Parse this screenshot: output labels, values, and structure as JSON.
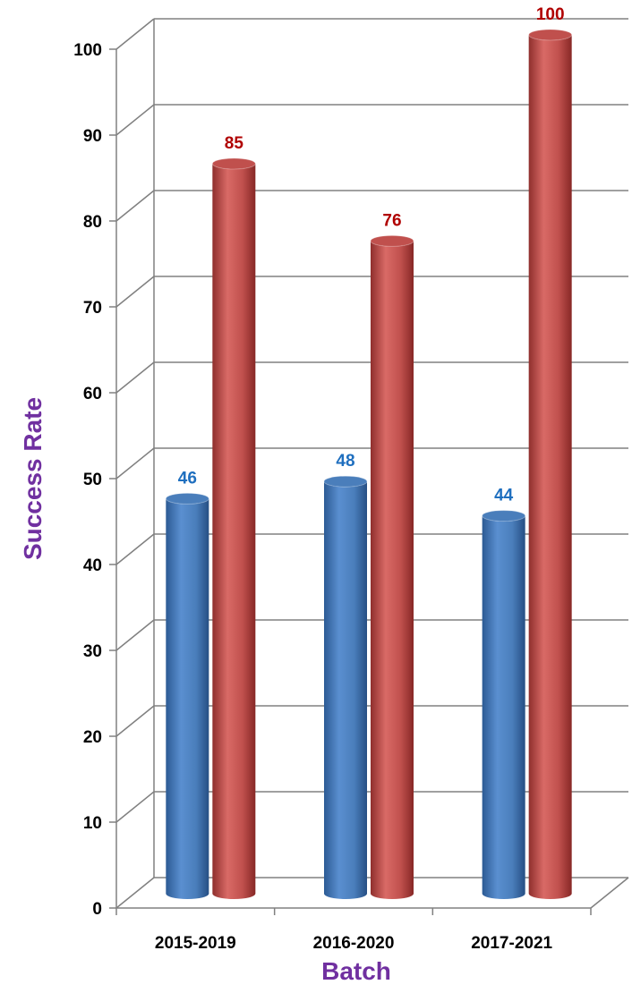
{
  "chart_data": {
    "type": "bar",
    "style": "3d-cylinder",
    "categories": [
      "2015-2019",
      "2016-2020",
      "2017-2021"
    ],
    "series": [
      {
        "values": [
          46,
          48,
          44
        ],
        "color": "#4a7ebb",
        "label_color": "#1f6fbf"
      },
      {
        "values": [
          85,
          76,
          100
        ],
        "color": "#c0504d",
        "label_color": "#b00000"
      }
    ],
    "xlabel": "Batch",
    "ylabel": "Success Rate",
    "ylim": [
      0,
      100
    ],
    "yticks": [
      0,
      10,
      20,
      30,
      40,
      50,
      60,
      70,
      80,
      90,
      100
    ],
    "grid": true,
    "legend": "none",
    "axis_title_color": "#7030a0"
  }
}
